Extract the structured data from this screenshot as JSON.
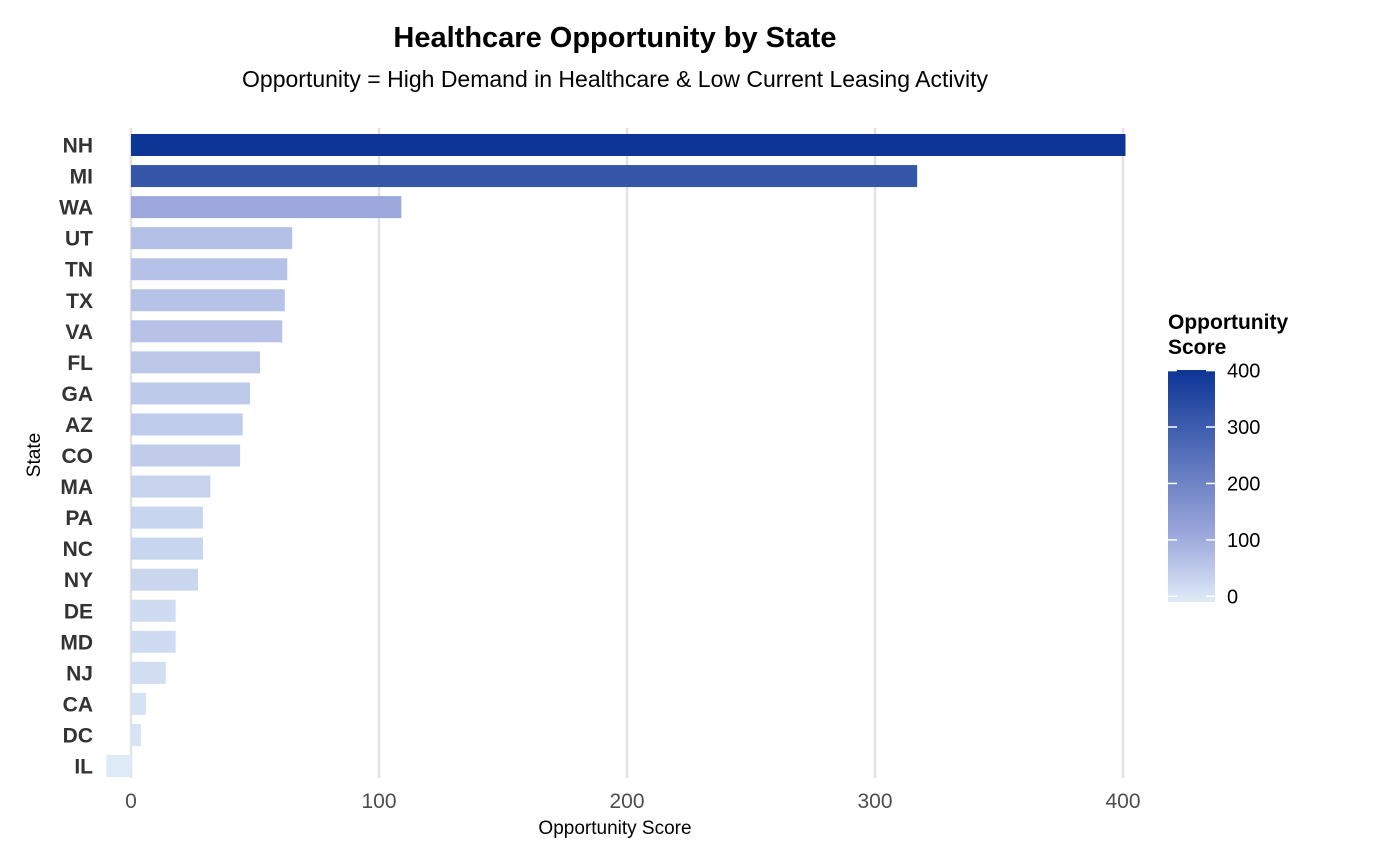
{
  "chart_data": {
    "type": "bar",
    "orientation": "horizontal",
    "title": "Healthcare Opportunity by State",
    "subtitle": "Opportunity = High Demand in Healthcare & Low Current Leasing Activity",
    "xlabel": "Opportunity Score",
    "ylabel": "State",
    "xlim": [
      -10,
      410
    ],
    "xticks": [
      0,
      100,
      200,
      300,
      400
    ],
    "grid": "vertical major",
    "categories": [
      "NH",
      "MI",
      "WA",
      "UT",
      "TN",
      "TX",
      "VA",
      "FL",
      "GA",
      "AZ",
      "CO",
      "MA",
      "PA",
      "NC",
      "NY",
      "DE",
      "MD",
      "NJ",
      "CA",
      "DC",
      "IL"
    ],
    "values": [
      401,
      317,
      109,
      65,
      63,
      62,
      61,
      52,
      48,
      45,
      44,
      32,
      29,
      29,
      27,
      18,
      18,
      14,
      6,
      4,
      -10
    ],
    "color_scale": {
      "title": "Opportunity Score",
      "low_color": "#deebf7",
      "mid_color": "#9ea9dc",
      "high_color": "#0c3595",
      "ticks": [
        0,
        100,
        200,
        300,
        400
      ],
      "range": [
        -10,
        401
      ]
    },
    "legend_position": "right"
  }
}
